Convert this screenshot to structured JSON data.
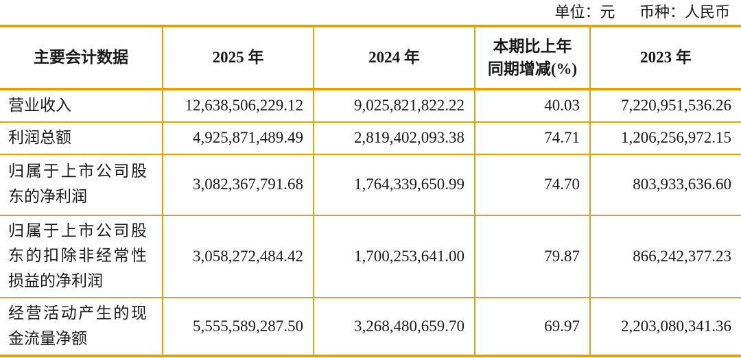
{
  "unit_note": {
    "unit": "单位：元",
    "currency": "币种：人民币"
  },
  "colors": {
    "table_border": "#DBA506",
    "text": "#1a1a1a",
    "background": "#ffffff"
  },
  "table": {
    "headers": {
      "col1": "主要会计数据",
      "col2": "2025 年",
      "col3": "2024 年",
      "col4_line1": "本期比上年",
      "col4_line2": "同期增减(%)",
      "col5": "2023 年"
    },
    "rows": [
      [
        "营业收入",
        "12,638,506,229.12",
        "9,025,821,822.22",
        "40.03",
        "7,220,951,536.26"
      ],
      [
        "利润总额",
        "4,925,871,489.49",
        "2,819,402,093.38",
        "74.71",
        "1,206,256,972.15"
      ],
      [
        "归属于上市公司股东的净利润",
        "3,082,367,791.68",
        "1,764,339,650.99",
        "74.70",
        "803,933,636.60"
      ],
      [
        "归属于上市公司股东的扣除非经常性损益的净利润",
        "3,058,272,484.42",
        "1,700,253,641.00",
        "79.87",
        "866,242,377.23"
      ],
      [
        "经营活动产生的现金流量净额",
        "5,555,589,287.50",
        "3,268,480,659.70",
        "69.97",
        "2,203,080,341.36"
      ]
    ]
  }
}
